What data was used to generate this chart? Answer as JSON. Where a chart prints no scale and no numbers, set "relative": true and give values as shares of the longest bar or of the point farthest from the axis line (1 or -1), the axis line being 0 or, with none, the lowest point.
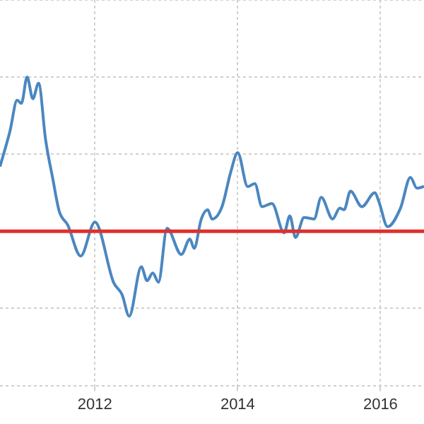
{
  "chart_data": {
    "type": "line",
    "relative": true,
    "x": [
      2010.67,
      2010.81,
      2010.91,
      2010.97,
      2011.05,
      2011.13,
      2011.21,
      2011.31,
      2011.41,
      2011.5,
      2011.62,
      2011.8,
      2012.0,
      2012.26,
      2012.38,
      2012.48,
      2012.65,
      2012.73,
      2012.81,
      2012.89,
      2013.01,
      2013.21,
      2013.33,
      2013.39,
      2013.49,
      2013.58,
      2013.64,
      2013.78,
      2013.9,
      2014.0,
      2014.14,
      2014.24,
      2014.34,
      2014.48,
      2014.65,
      2014.73,
      2014.81,
      2014.93,
      2015.07,
      2015.17,
      2015.33,
      2015.43,
      2015.49,
      2015.58,
      2015.74,
      2015.92,
      2015.98,
      2016.1,
      2016.28,
      2016.42,
      2016.51,
      2016.61
    ],
    "series": [
      {
        "color": "#4a87c0",
        "values": [
          0.42,
          0.65,
          0.85,
          0.83,
          1.0,
          0.86,
          0.96,
          0.59,
          0.34,
          0.13,
          0.04,
          -0.16,
          0.06,
          -0.33,
          -0.41,
          -0.55,
          -0.23,
          -0.32,
          -0.27,
          -0.33,
          0.02,
          -0.15,
          -0.05,
          -0.11,
          0.08,
          0.14,
          0.08,
          0.16,
          0.38,
          0.51,
          0.29,
          0.31,
          0.16,
          0.18,
          -0.01,
          0.1,
          -0.04,
          0.09,
          0.08,
          0.22,
          0.08,
          0.15,
          0.14,
          0.26,
          0.16,
          0.25,
          0.19,
          0.03,
          0.15,
          0.35,
          0.28,
          0.29
        ]
      }
    ],
    "xlim": [
      2010.67,
      2016.61
    ],
    "xticks": [
      2012,
      2014,
      2016
    ],
    "ref_lines": [
      {
        "axis": "y",
        "value": 0,
        "color": "#e0302c"
      }
    ],
    "grid": true,
    "legend": false,
    "marker": "none",
    "line_style": "solid"
  }
}
